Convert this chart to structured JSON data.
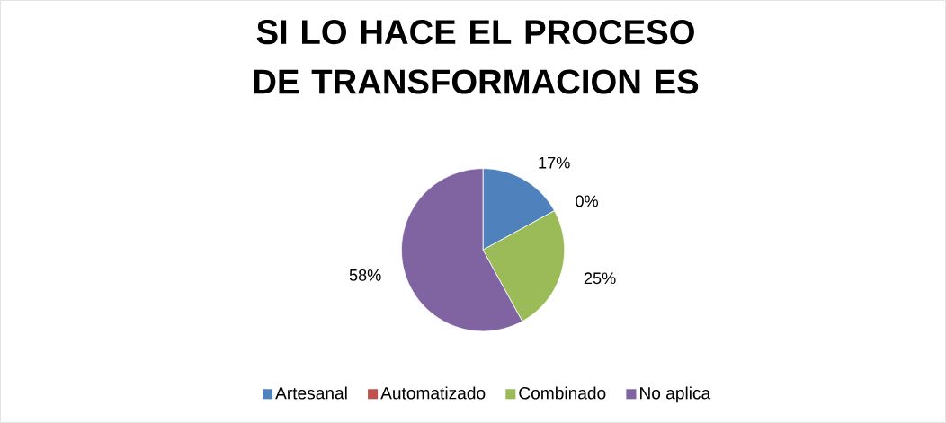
{
  "chart_data": {
    "type": "pie",
    "title": "SI LO HACE EL PROCESO DE TRANSFORMACION ES",
    "categories": [
      "Artesanal",
      "Automatizado",
      "Combinado",
      "No aplica"
    ],
    "values": [
      17,
      0,
      25,
      58
    ],
    "value_labels": [
      "17%",
      "0%",
      "25%",
      "58%"
    ],
    "colors": [
      "#4f81bd",
      "#c0504d",
      "#9bbb59",
      "#8064a2"
    ],
    "legend": "bottom"
  }
}
